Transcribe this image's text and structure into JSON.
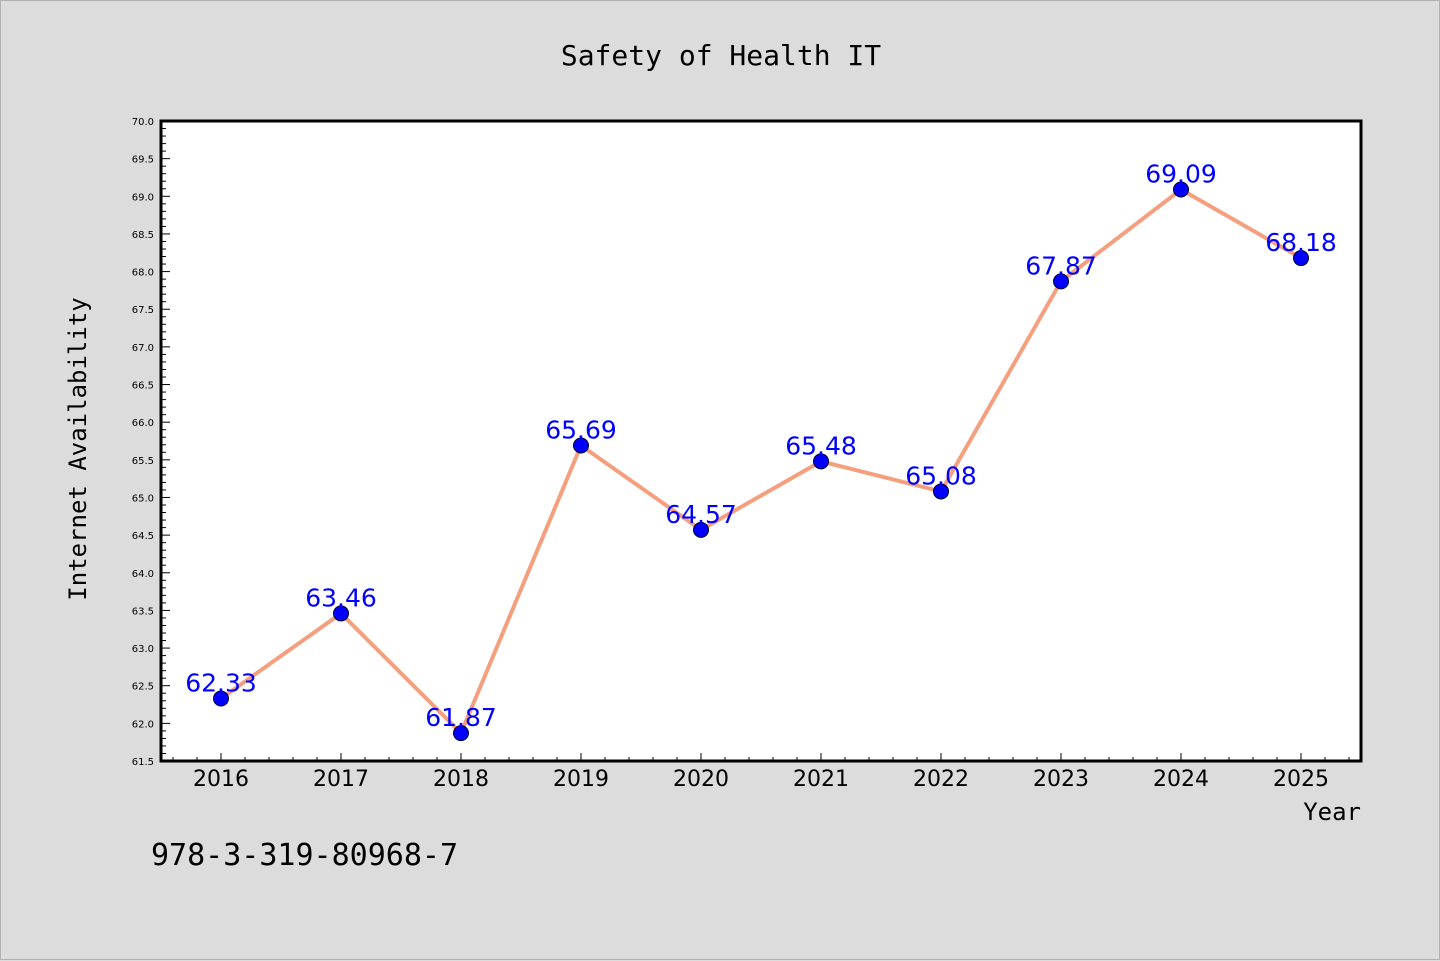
{
  "chart_data": {
    "type": "line",
    "title": "Safety of Health IT",
    "xlabel": "Year",
    "ylabel": "Internet Availability",
    "x": [
      "2016",
      "2017",
      "2018",
      "2019",
      "2020",
      "2021",
      "2022",
      "2023",
      "2024",
      "2025"
    ],
    "values": [
      62.33,
      63.46,
      61.87,
      65.69,
      64.57,
      65.48,
      65.08,
      67.87,
      69.09,
      68.18
    ],
    "data_labels": [
      "62.33",
      "63.46",
      "61.87",
      "65.69",
      "64.57",
      "65.48",
      "65.08",
      "67.87",
      "69.09",
      "68.18"
    ],
    "ylim": [
      61.5,
      70.0
    ],
    "yticks": [
      "61.5",
      "62.0",
      "62.5",
      "63.0",
      "63.5",
      "64.0",
      "64.5",
      "65.0",
      "65.5",
      "66.0",
      "66.5",
      "67.0",
      "67.5",
      "68.0",
      "68.5",
      "69.0",
      "69.5",
      "70.0"
    ],
    "grid": false,
    "line_color": "#f4a07f",
    "marker_color": "#0000ff",
    "label_color": "#0000ff",
    "plot_background": "#ffffff",
    "page_background": "#dcdcdc"
  },
  "annotation": "978-3-319-80968-7"
}
